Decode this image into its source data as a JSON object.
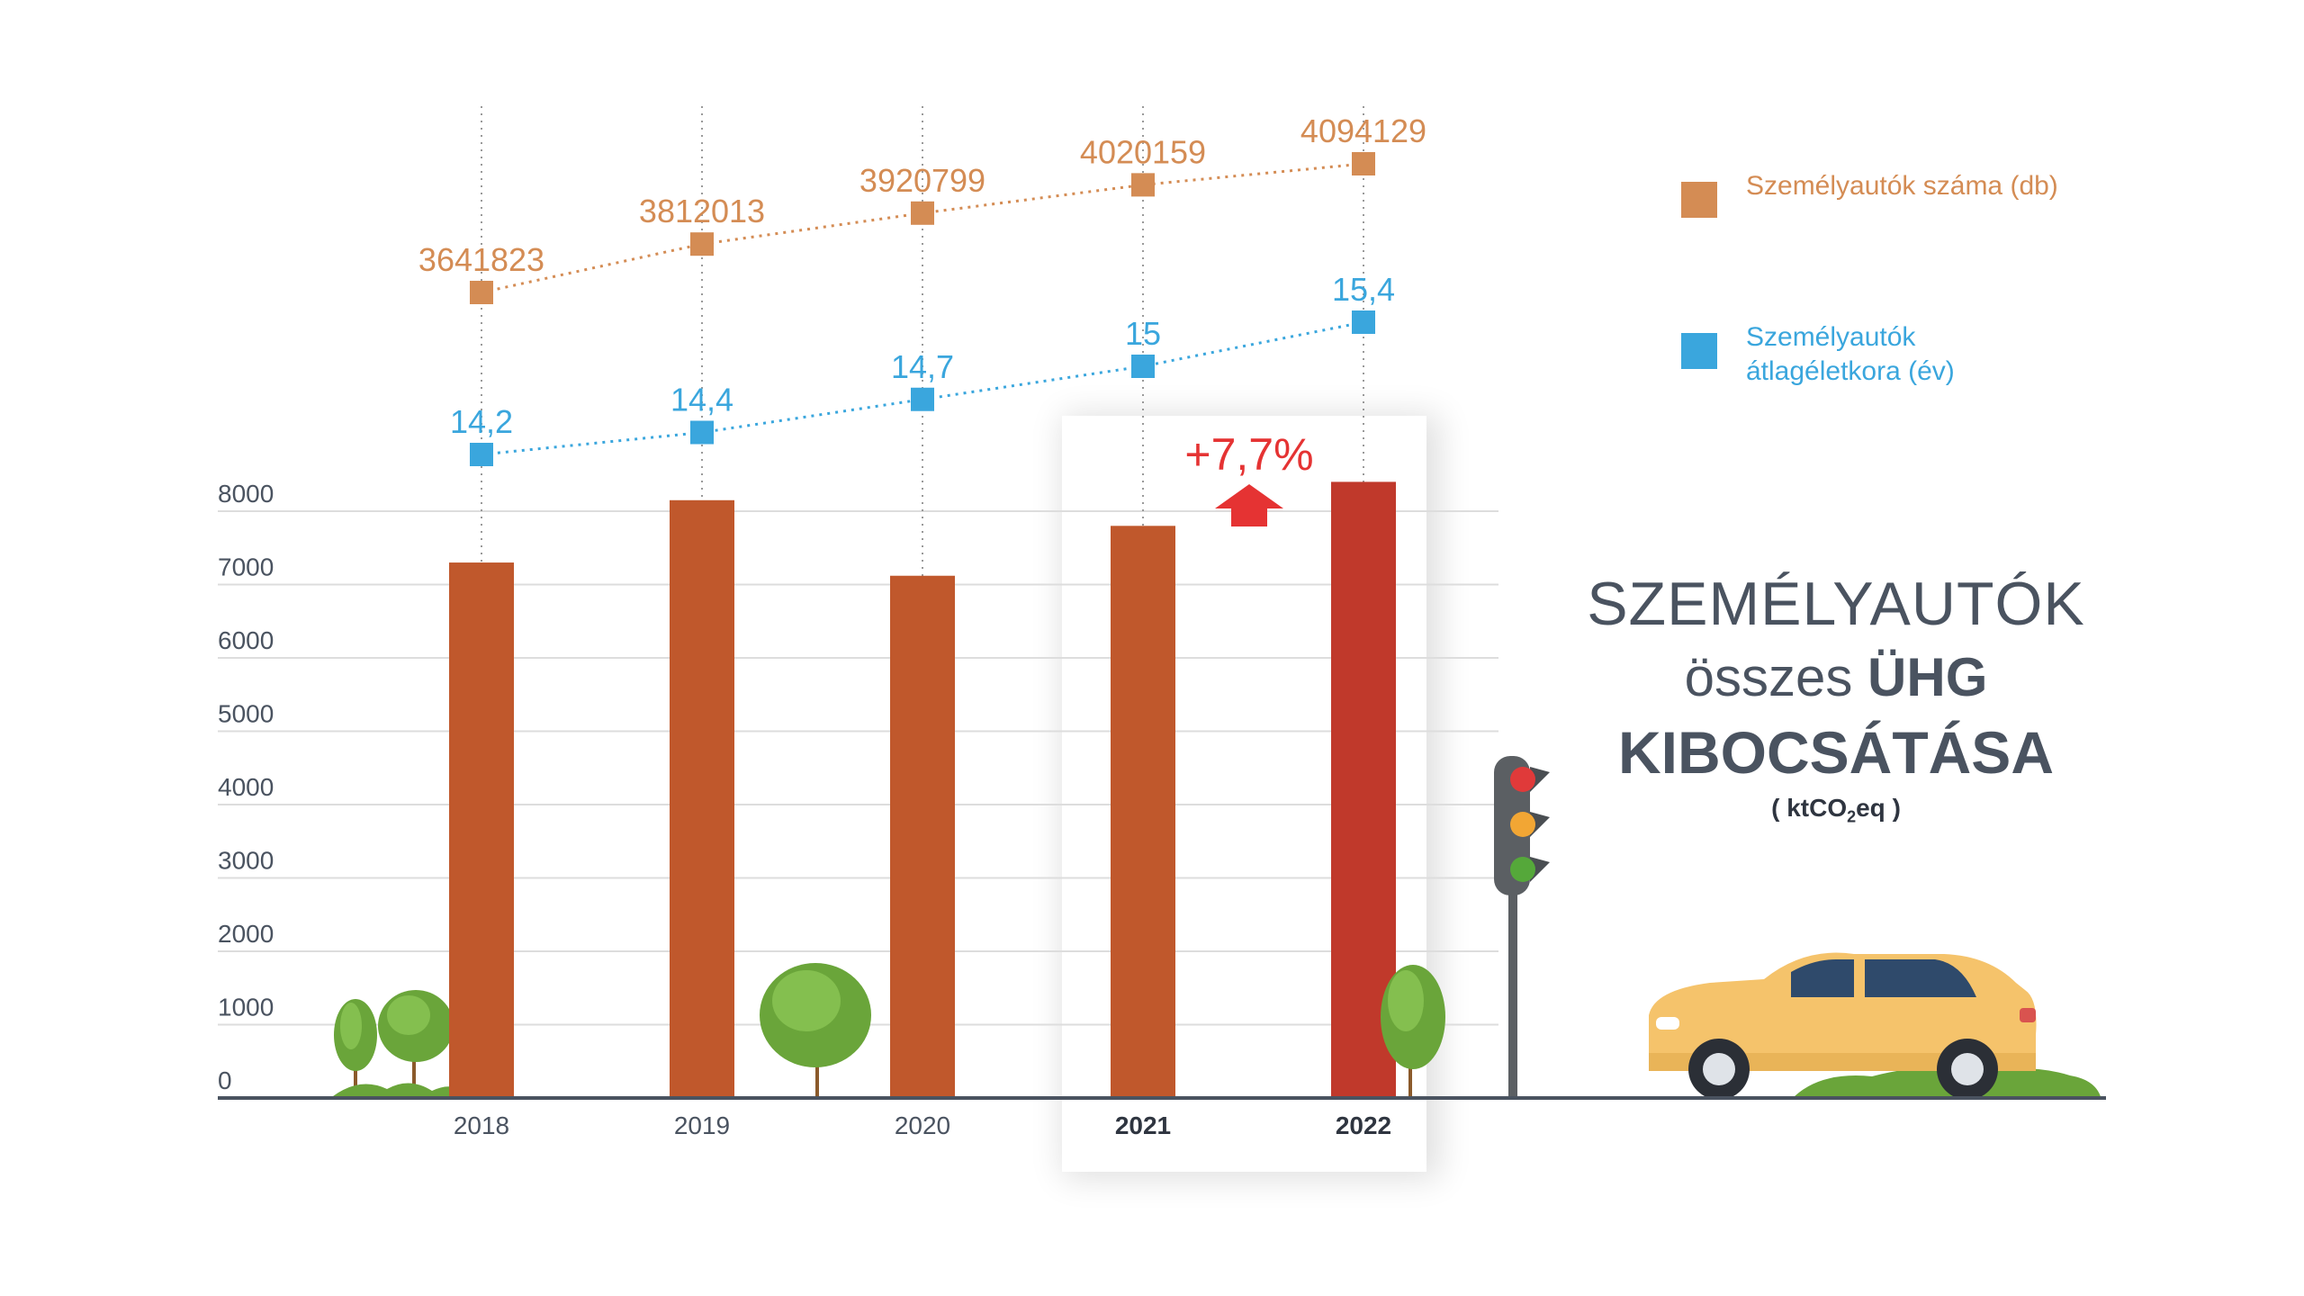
{
  "title": {
    "line1": "SZEMÉLYAUTÓK",
    "line2_normal": "összes",
    "line2_bold": "ÜHG",
    "line3": "KIBOCSÁTÁSA",
    "unit_pre": "( ktCO",
    "unit_sub": "2",
    "unit_post": "eq )"
  },
  "legend": {
    "cars_count": "Személyautók száma (db)",
    "avg_age": "Személyautók átlagéletkora (év)"
  },
  "annotation": {
    "change": "+7,7%"
  },
  "colors": {
    "bar": "#c0582c",
    "bar_highlight": "#c0392b",
    "orange_series": "#d48c54",
    "blue_series": "#3aa6dd",
    "arrow": "#e53333",
    "axis": "#4a5360",
    "tree": "#6aa53a"
  },
  "chart_data": {
    "type": "bar",
    "categories": [
      "2018",
      "2019",
      "2020",
      "2021",
      "2022"
    ],
    "bold_categories": [
      "2021",
      "2022"
    ],
    "highlight_category": "2022",
    "values": [
      7300,
      8150,
      7120,
      7800,
      8400
    ],
    "y_ticks": [
      "0",
      "1000",
      "2000",
      "3000",
      "4000",
      "5000",
      "6000",
      "7000",
      "8000"
    ],
    "ylim": [
      0,
      8000
    ],
    "grid": true,
    "overlay_series": [
      {
        "name": "Személyautók száma (db)",
        "type": "line",
        "values": [
          3641823,
          3812013,
          3920799,
          4020159,
          4094129
        ],
        "labels": [
          "3641823",
          "3812013",
          "3920799",
          "4020159",
          "4094129"
        ]
      },
      {
        "name": "Személyautók átlagéletkora (év)",
        "type": "line",
        "values": [
          14.2,
          14.4,
          14.7,
          15,
          15.4
        ],
        "labels": [
          "14,2",
          "14,4",
          "14,7",
          "15",
          "15,4"
        ]
      }
    ],
    "legend_position": "top-right"
  }
}
